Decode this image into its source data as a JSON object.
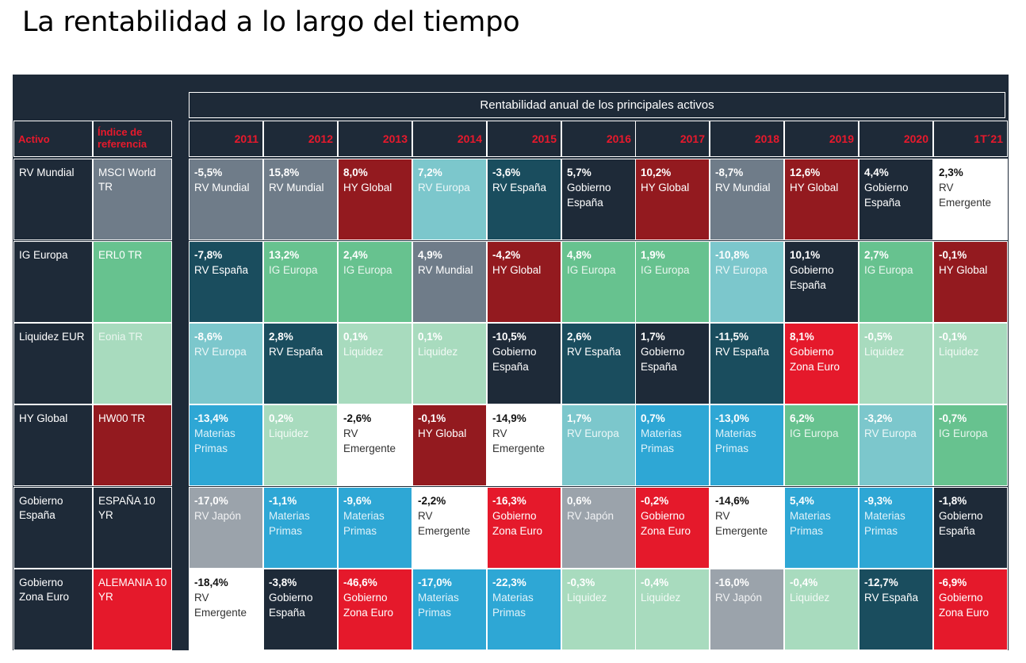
{
  "title": "La rentabilidad a lo largo del tiempo",
  "header": {
    "main": "Rentabilidad anual de los principales activos",
    "activo": "Activo",
    "indice": "Índice de referencia",
    "years": [
      "2011",
      "2012",
      "2013",
      "2014",
      "2015",
      "2016",
      "2017",
      "2018",
      "2019",
      "2020",
      "1T´21"
    ]
  },
  "colors": {
    "RV Mundial": "#6f7c89",
    "RV España": "#1a4d5e",
    "RV Europa": "#7cc7cc",
    "IG Europa": "#67c28f",
    "Liquidez": "#a8dbbe",
    "HY Global": "#931a1f",
    "Materias Primas": "#2ea7d5",
    "RV Japón": "#9ba3ab",
    "Gobierno España": "#1e2a38",
    "Gobierno Zona Euro": "#e5192b",
    "RV Emergente": "#ffffff"
  },
  "rows": [
    {
      "asset": "RV Mundial",
      "index": "MSCI World TR",
      "index_color": "#6f7c89",
      "cells": [
        {
          "value": "-5,5%",
          "name": "RV Mundial"
        },
        {
          "value": "15,8%",
          "name": "RV Mundial"
        },
        {
          "value": "8,0%",
          "name": "HY Global"
        },
        {
          "value": "7,2%",
          "name": "RV Europa"
        },
        {
          "value": "-3,6%",
          "name": "RV España"
        },
        {
          "value": "5,7%",
          "name": "Gobierno España"
        },
        {
          "value": "10,2%",
          "name": "HY Global"
        },
        {
          "value": "-8,7%",
          "name": "RV Mundial"
        },
        {
          "value": "12,6%",
          "name": "HY Global"
        },
        {
          "value": "4,4%",
          "name": "Gobierno España"
        },
        {
          "value": "2,3%",
          "name": "RV Emergente"
        }
      ]
    },
    {
      "asset": "IG Europa",
      "index": "ERL0 TR",
      "index_color": "#67c28f",
      "cells": [
        {
          "value": "-7,8%",
          "name": "RV España"
        },
        {
          "value": "13,2%",
          "name": "IG Europa"
        },
        {
          "value": "2,4%",
          "name": "IG Europa"
        },
        {
          "value": "4,9%",
          "name": "RV Mundial"
        },
        {
          "value": "-4,2%",
          "name": "HY Global"
        },
        {
          "value": "4,8%",
          "name": "IG Europa"
        },
        {
          "value": "1,9%",
          "name": "IG Europa"
        },
        {
          "value": "-10,8%",
          "name": "RV Europa"
        },
        {
          "value": "10,1%",
          "name": "Gobierno España"
        },
        {
          "value": "2,7%",
          "name": "IG Europa"
        },
        {
          "value": "-0,1%",
          "name": "HY Global"
        }
      ]
    },
    {
      "asset": "Liquidez EUR",
      "index": "Eonia TR",
      "index_color": "#a8dbbe",
      "cells": [
        {
          "value": "-8,6%",
          "name": "RV Europa"
        },
        {
          "value": "2,8%",
          "name": "RV España"
        },
        {
          "value": "0,1%",
          "name": "Liquidez"
        },
        {
          "value": "0,1%",
          "name": "Liquidez"
        },
        {
          "value": "-10,5%",
          "name": "Gobierno España"
        },
        {
          "value": "2,6%",
          "name": "RV España"
        },
        {
          "value": "1,7%",
          "name": "Gobierno España"
        },
        {
          "value": "-11,5%",
          "name": "RV España"
        },
        {
          "value": "8,1%",
          "name": "Gobierno Zona Euro"
        },
        {
          "value": "-0,5%",
          "name": "Liquidez"
        },
        {
          "value": "-0,1%",
          "name": "Liquidez"
        }
      ]
    },
    {
      "asset": "HY Global",
      "index": "HW00 TR",
      "index_color": "#931a1f",
      "cells": [
        {
          "value": "-13,4%",
          "name": "Materias Primas"
        },
        {
          "value": "0,2%",
          "name": "Liquidez"
        },
        {
          "value": "-2,6%",
          "name": "RV Emergente"
        },
        {
          "value": "-0,1%",
          "name": "HY Global"
        },
        {
          "value": "-14,9%",
          "name": "RV Emergente"
        },
        {
          "value": "1,7%",
          "name": "RV Europa"
        },
        {
          "value": "0,7%",
          "name": "Materias Primas"
        },
        {
          "value": "-13,0%",
          "name": "Materias Primas"
        },
        {
          "value": "6,2%",
          "name": "IG Europa"
        },
        {
          "value": "-3,2%",
          "name": "RV Europa"
        },
        {
          "value": "-0,7%",
          "name": "IG Europa"
        }
      ]
    },
    {
      "asset": "Gobierno España",
      "index": "ESPAÑA 10 YR",
      "index_color": "#1e2a38",
      "cells": [
        {
          "value": "-17,0%",
          "name": "RV Japón"
        },
        {
          "value": "-1,1%",
          "name": "Materias Primas"
        },
        {
          "value": "-9,6%",
          "name": "Materias Primas"
        },
        {
          "value": "-2,2%",
          "name": "RV Emergente"
        },
        {
          "value": "-16,3%",
          "name": "Gobierno Zona Euro"
        },
        {
          "value": "0,6%",
          "name": "RV Japón"
        },
        {
          "value": "-0,2%",
          "name": "Gobierno Zona Euro"
        },
        {
          "value": "-14,6%",
          "name": "RV Emergente"
        },
        {
          "value": "5,4%",
          "name": "Materias Primas"
        },
        {
          "value": "-9,3%",
          "name": "Materias Primas"
        },
        {
          "value": "-1,8%",
          "name": "Gobierno España"
        }
      ]
    },
    {
      "asset": "Gobierno Zona Euro",
      "index": "ALEMANIA 10 YR",
      "index_color": "#e5192b",
      "cells": [
        {
          "value": "-18,4%",
          "name": "RV Emergente"
        },
        {
          "value": "-3,8%",
          "name": "Gobierno España"
        },
        {
          "value": "-46,6%",
          "name": "Gobierno Zona Euro"
        },
        {
          "value": "-17,0%",
          "name": "Materias Primas"
        },
        {
          "value": "-22,3%",
          "name": "Materias Primas"
        },
        {
          "value": "-0,3%",
          "name": "Liquidez"
        },
        {
          "value": "-0,4%",
          "name": "Liquidez"
        },
        {
          "value": "-16,0%",
          "name": "RV Japón"
        },
        {
          "value": "-0,4%",
          "name": "Liquidez"
        },
        {
          "value": "-12,7%",
          "name": "RV España"
        },
        {
          "value": "-6,9%",
          "name": "Gobierno Zona Euro"
        }
      ]
    }
  ]
}
